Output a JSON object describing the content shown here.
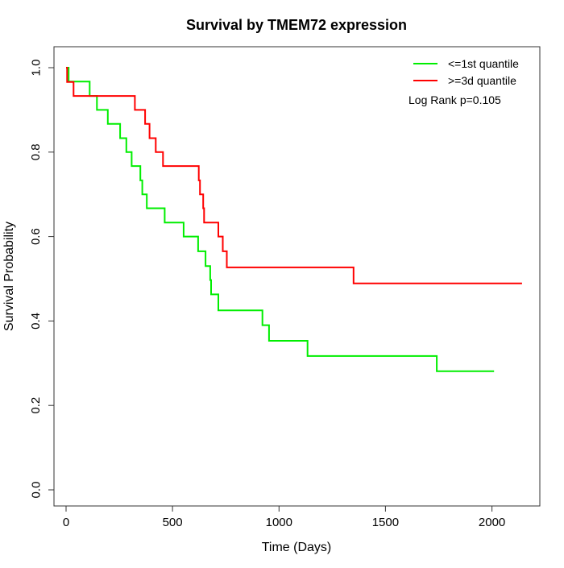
{
  "chart_data": {
    "type": "line",
    "subtype": "kaplan-meier-step",
    "title": "Survival by TMEM72 expression",
    "xlabel": "Time (Days)",
    "ylabel": "Survival Probability",
    "xlim": [
      0,
      2224
    ],
    "ylim": [
      0,
      1
    ],
    "grid": false,
    "legend_position": "top-right",
    "annotation": "Log Rank p=0.105",
    "xtick_values": [
      0,
      500,
      1000,
      1500,
      2000
    ],
    "xtick_labels": [
      "0",
      "500",
      "1000",
      "1500",
      "2000"
    ],
    "ytick_values": [
      0,
      0.2,
      0.4,
      0.6,
      0.8,
      1.0
    ],
    "ytick_labels": [
      "0.0",
      "0.2",
      "0.4",
      "0.6",
      "0.8",
      "1.0"
    ],
    "axis_color": "#333333",
    "legend": [
      {
        "label": "<=1st quantile",
        "color": "#00ee00"
      },
      {
        "label": ">=3d quantile",
        "color": "#ff0000"
      }
    ],
    "series": [
      {
        "name": "<=1st quantile",
        "color": "#00ee00",
        "step_points": [
          [
            0,
            1.0
          ],
          [
            12,
            0.967
          ],
          [
            111,
            0.933
          ],
          [
            145,
            0.9
          ],
          [
            196,
            0.867
          ],
          [
            254,
            0.833
          ],
          [
            283,
            0.8
          ],
          [
            308,
            0.767
          ],
          [
            349,
            0.733
          ],
          [
            358,
            0.7
          ],
          [
            379,
            0.667
          ],
          [
            463,
            0.633
          ],
          [
            552,
            0.6
          ],
          [
            620,
            0.565
          ],
          [
            655,
            0.53
          ],
          [
            677,
            0.497
          ],
          [
            681,
            0.463
          ],
          [
            715,
            0.425
          ],
          [
            922,
            0.39
          ],
          [
            953,
            0.353
          ],
          [
            1134,
            0.317
          ],
          [
            1741,
            0.281
          ],
          [
            2010,
            0.281
          ]
        ]
      },
      {
        "name": ">=3d quantile",
        "color": "#ff0000",
        "step_points": [
          [
            0,
            1.0
          ],
          [
            5,
            0.966
          ],
          [
            35,
            0.933
          ],
          [
            323,
            0.9
          ],
          [
            371,
            0.867
          ],
          [
            392,
            0.833
          ],
          [
            421,
            0.8
          ],
          [
            455,
            0.767
          ],
          [
            623,
            0.733
          ],
          [
            629,
            0.7
          ],
          [
            644,
            0.667
          ],
          [
            648,
            0.633
          ],
          [
            715,
            0.6
          ],
          [
            736,
            0.565
          ],
          [
            755,
            0.527
          ],
          [
            1350,
            0.489
          ],
          [
            2141,
            0.489
          ]
        ]
      }
    ]
  }
}
